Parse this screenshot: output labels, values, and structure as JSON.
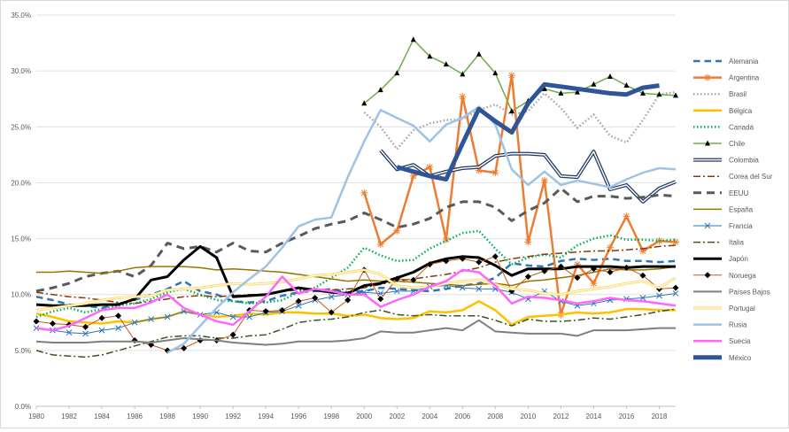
{
  "chart_data": {
    "type": "line",
    "title": "",
    "xlabel": "",
    "ylabel": "",
    "ylim": [
      0,
      35
    ],
    "xlim": [
      1980,
      2019
    ],
    "grid": "horizontal",
    "legend_position": "right",
    "y_ticks": [
      "0.0%",
      "5.0%",
      "10.0%",
      "15.0%",
      "20.0%",
      "25.0%",
      "30.0%",
      "35.0%"
    ],
    "x_ticks": [
      "1980",
      "1982",
      "1984",
      "1986",
      "1988",
      "1990",
      "1992",
      "1994",
      "1996",
      "1998",
      "2000",
      "2002",
      "2004",
      "2006",
      "2008",
      "2010",
      "2012",
      "2014",
      "2016",
      "2018"
    ],
    "series": [
      {
        "name": "Alemania",
        "color": "#2e75b6",
        "style": "dash",
        "width": 2.5,
        "marker": "none",
        "start": 1980,
        "values": [
          9.8,
          9.5,
          9.1,
          9.0,
          8.8,
          9.2,
          9.5,
          10.0,
          10.5,
          11.2,
          10.3,
          10.0,
          9.4,
          9.3,
          9.4,
          9.9,
          10.2,
          10.3,
          10.5,
          10.2,
          10.3,
          10.6,
          10.5,
          10.4,
          10.3,
          10.5,
          10.8,
          11.0,
          11.5,
          12.8,
          12.6,
          12.5,
          13.0,
          13.2,
          13.1,
          13.2,
          13.0,
          13.0,
          12.9,
          13.0
        ]
      },
      {
        "name": "Argentina",
        "color": "#ed7d31",
        "style": "solid",
        "width": 2.5,
        "marker": "star",
        "start": 2000,
        "values": [
          19.1,
          14.5,
          15.7,
          20.6,
          21.4,
          14.9,
          27.7,
          21.1,
          20.9,
          29.6,
          14.7,
          20.2,
          8.2,
          12.7,
          11.0,
          14.2,
          17.0,
          13.9,
          14.8,
          14.7
        ]
      },
      {
        "name": "Brasil",
        "color": "#a5a5a5",
        "style": "dot",
        "width": 2.5,
        "marker": "none",
        "start": 2000,
        "values": [
          26.3,
          25.0,
          23.0,
          24.7,
          25.3,
          25.6,
          25.7,
          26.5,
          27.0,
          26.1,
          26.4,
          28.0,
          26.7,
          24.9,
          26.1,
          24.2,
          23.6,
          25.6,
          27.9,
          28.1
        ]
      },
      {
        "name": "Bélgica",
        "color": "#ffc000",
        "style": "solid",
        "width": 2.5,
        "marker": "none",
        "start": 1980,
        "values": [
          8.3,
          8.0,
          7.6,
          7.5,
          7.4,
          7.6,
          7.5,
          7.8,
          8.0,
          8.5,
          8.2,
          8.0,
          8.1,
          8.3,
          8.2,
          8.4,
          8.4,
          8.3,
          8.3,
          8.1,
          8.2,
          7.9,
          7.8,
          7.9,
          8.5,
          8.4,
          8.6,
          9.4,
          8.6,
          7.3,
          8.0,
          8.1,
          8.2,
          8.4,
          8.3,
          8.4,
          8.7,
          8.7,
          8.6,
          8.6
        ]
      },
      {
        "name": "Canadá",
        "color": "#00b050",
        "style": "dot",
        "width": 2.5,
        "marker": "none",
        "start": 1980,
        "values": [
          8.0,
          8.5,
          8.8,
          8.4,
          8.7,
          9.0,
          9.2,
          9.6,
          10.2,
          10.5,
          10.0,
          9.5,
          9.4,
          9.2,
          9.3,
          9.5,
          10.2,
          10.6,
          11.5,
          12.4,
          14.2,
          13.5,
          13.0,
          13.1,
          14.1,
          14.8,
          15.5,
          15.7,
          14.1,
          12.7,
          13.3,
          13.6,
          13.3,
          14.4,
          15.0,
          15.3,
          14.9,
          14.9,
          14.8,
          14.9
        ]
      },
      {
        "name": "Chile",
        "color": "#70ad47",
        "style": "solid",
        "width": 1.5,
        "marker": "triangle",
        "start": 2000,
        "values": [
          27.1,
          28.3,
          29.8,
          32.8,
          31.3,
          30.6,
          29.7,
          31.5,
          29.8,
          26.4,
          27.3,
          28.4,
          28.0,
          28.1,
          28.8,
          29.5,
          28.7,
          28.0,
          27.9,
          27.8
        ]
      },
      {
        "name": "Colombia",
        "color": "#1f3864",
        "style": "double",
        "width": 4,
        "marker": "none",
        "start": 2001,
        "values": [
          22.9,
          21.2,
          21.6,
          20.6,
          21.0,
          21.3,
          21.4,
          22.4,
          22.6,
          22.6,
          22.5,
          20.6,
          20.5,
          22.8,
          19.4,
          19.8,
          18.3,
          19.5,
          20.1
        ]
      },
      {
        "name": "Corea del Sur",
        "color": "#843c0c",
        "style": "dashdot",
        "width": 1.5,
        "marker": "none",
        "start": 1980,
        "values": [
          10.2,
          10.0,
          9.8,
          9.7,
          9.5,
          9.3,
          9.2,
          9.4,
          9.6,
          9.8,
          9.9,
          9.8,
          9.9,
          10.0,
          10.0,
          10.3,
          10.4,
          10.5,
          10.4,
          10.5,
          10.6,
          10.9,
          11.2,
          11.4,
          11.6,
          11.8,
          12.1,
          12.4,
          12.9,
          13.2,
          13.4,
          13.6,
          13.7,
          13.8,
          13.9,
          13.9,
          14.0,
          14.1,
          14.3,
          14.4
        ]
      },
      {
        "name": "EEUU",
        "color": "#595959",
        "style": "dash",
        "width": 3,
        "marker": "none",
        "start": 1980,
        "values": [
          10.3,
          10.6,
          11.0,
          11.6,
          11.9,
          12.1,
          11.6,
          12.6,
          14.6,
          14.1,
          14.3,
          13.8,
          14.6,
          13.9,
          13.8,
          14.6,
          15.2,
          15.9,
          16.3,
          16.6,
          17.3,
          16.7,
          16.0,
          16.3,
          16.8,
          17.8,
          18.3,
          18.3,
          17.8,
          16.6,
          17.5,
          18.2,
          19.5,
          18.3,
          18.8,
          18.8,
          18.6,
          18.7,
          18.9,
          18.8
        ]
      },
      {
        "name": "España",
        "color": "#997300",
        "style": "solid",
        "width": 1.5,
        "marker": "none",
        "start": 1980,
        "values": [
          12.0,
          12.0,
          12.1,
          12.0,
          11.9,
          12.1,
          12.4,
          12.5,
          12.5,
          12.5,
          12.4,
          12.2,
          12.3,
          12.2,
          12.1,
          12.0,
          11.8,
          11.6,
          11.4,
          11.2,
          11.3,
          11.2,
          11.2,
          11.1,
          11.0,
          10.9,
          10.8,
          10.9,
          11.0,
          10.8,
          11.2,
          11.3,
          11.5,
          11.7,
          12.0,
          12.3,
          12.2,
          12.2,
          12.3,
          12.5
        ]
      },
      {
        "name": "Francia",
        "color": "#2e75b6",
        "style": "solid",
        "width": 1,
        "marker": "x",
        "start": 1980,
        "values": [
          7.0,
          6.8,
          6.6,
          6.5,
          6.8,
          7.0,
          7.5,
          7.8,
          8.0,
          8.5,
          8.2,
          8.4,
          8.0,
          8.0,
          8.4,
          8.5,
          9.0,
          9.5,
          9.8,
          10.0,
          10.2,
          10.1,
          10.3,
          10.3,
          10.7,
          10.8,
          10.6,
          10.5,
          10.5,
          10.2,
          9.6,
          10.3,
          9.4,
          9.0,
          9.2,
          9.5,
          9.6,
          9.7,
          9.9,
          10.1
        ]
      },
      {
        "name": "Italia",
        "color": "#375623",
        "style": "dashdot",
        "width": 1.5,
        "marker": "none",
        "start": 1980,
        "values": [
          5.0,
          4.6,
          4.5,
          4.4,
          4.6,
          5.0,
          5.4,
          5.8,
          6.2,
          6.3,
          6.3,
          6.1,
          6.1,
          6.3,
          6.4,
          6.9,
          7.5,
          7.7,
          7.8,
          8.0,
          8.4,
          8.6,
          8.2,
          8.1,
          8.2,
          8.1,
          8.1,
          8.1,
          7.7,
          7.2,
          7.8,
          7.6,
          7.6,
          7.7,
          7.9,
          7.8,
          8.0,
          8.2,
          8.5,
          8.7
        ]
      },
      {
        "name": "Japón",
        "color": "#000000",
        "style": "solid",
        "width": 3,
        "marker": "none",
        "start": 1980,
        "values": [
          9.1,
          9.0,
          9.0,
          9.0,
          9.1,
          9.1,
          9.6,
          11.3,
          11.6,
          13.1,
          14.3,
          13.3,
          9.8,
          9.9,
          10.0,
          10.3,
          10.6,
          10.4,
          10.2,
          10.1,
          10.8,
          11.0,
          11.5,
          12.0,
          12.8,
          13.2,
          13.4,
          13.3,
          12.6,
          11.7,
          12.3,
          12.3,
          12.3,
          12.5,
          12.5,
          12.5,
          12.4,
          12.5,
          12.5,
          12.5
        ]
      },
      {
        "name": "Noruega",
        "color": "#c55a11",
        "style": "solid",
        "width": 1,
        "marker": "diamond",
        "start": 1980,
        "values": [
          7.6,
          7.4,
          7.3,
          7.1,
          7.9,
          8.1,
          5.9,
          5.5,
          5.0,
          5.2,
          5.9,
          5.9,
          6.4,
          8.6,
          8.5,
          8.6,
          9.4,
          9.7,
          8.4,
          9.5,
          12.2,
          9.6,
          11.4,
          11.3,
          12.7,
          13.0,
          13.2,
          12.9,
          13.4,
          10.3,
          11.6,
          12.1,
          12.5,
          11.5,
          12.3,
          12.0,
          12.4,
          11.7,
          10.5,
          10.6
        ]
      },
      {
        "name": "Países Bajos",
        "color": "#7f7f7f",
        "style": "solid",
        "width": 2,
        "marker": "none",
        "start": 1980,
        "values": [
          5.8,
          5.7,
          5.7,
          5.7,
          5.8,
          5.8,
          5.8,
          5.7,
          5.9,
          6.1,
          6.0,
          5.9,
          5.7,
          5.6,
          5.5,
          5.6,
          5.8,
          5.8,
          5.8,
          5.9,
          6.1,
          6.7,
          6.6,
          6.6,
          6.8,
          7.0,
          6.8,
          7.7,
          6.7,
          6.6,
          6.5,
          6.5,
          6.5,
          6.3,
          6.8,
          6.8,
          6.8,
          6.9,
          7.0,
          7.0
        ]
      },
      {
        "name": "Portugal",
        "color": "#ffd966",
        "style": "double",
        "width": 3,
        "marker": "none",
        "start": 1980,
        "values": [
          8.6,
          8.8,
          9.0,
          9.2,
          9.5,
          9.7,
          9.8,
          9.9,
          10.4,
          10.5,
          10.6,
          10.8,
          11.0,
          10.9,
          11.0,
          11.1,
          11.4,
          11.7,
          11.8,
          12.0,
          12.2,
          11.8,
          10.8,
          10.6,
          10.7,
          11.0,
          11.2,
          11.3,
          10.9,
          10.5,
          10.4,
          10.1,
          10.0,
          10.3,
          10.5,
          10.7,
          11.0,
          11.2,
          10.6,
          11.5
        ]
      },
      {
        "name": "Rusia",
        "color": "#9dc3e6",
        "style": "solid",
        "width": 2.5,
        "marker": "none",
        "start": 1988,
        "values": [
          4.8,
          5.6,
          7.2,
          8.8,
          10.2,
          11.4,
          12.5,
          14.2,
          16.1,
          16.7,
          16.9,
          20.5,
          23.7,
          26.5,
          25.8,
          25.1,
          23.7,
          25.2,
          25.8,
          26.8,
          25.2,
          21.2,
          19.8,
          21.0,
          19.8,
          20.2,
          19.9,
          19.6,
          20.3,
          20.9,
          21.3,
          21.2
        ]
      },
      {
        "name": "Suecia",
        "color": "#ff66ff",
        "style": "solid",
        "width": 2.5,
        "marker": "none",
        "start": 1980,
        "values": [
          7.0,
          6.8,
          7.2,
          7.9,
          8.6,
          8.8,
          8.8,
          9.3,
          10.0,
          8.8,
          8.2,
          7.6,
          7.3,
          8.5,
          9.8,
          11.6,
          10.1,
          10.5,
          10.3,
          10.0,
          10.0,
          8.9,
          9.5,
          10.0,
          10.7,
          11.2,
          12.2,
          12.0,
          10.8,
          9.2,
          9.8,
          9.7,
          9.5,
          9.2,
          9.4,
          9.7,
          9.5,
          9.4,
          9.2,
          9.0
        ]
      },
      {
        "name": "México",
        "color": "#2f5597",
        "style": "solid",
        "width": 5,
        "marker": "none",
        "start": 2002,
        "values": [
          21.4,
          21.0,
          20.6,
          20.3,
          23.5,
          26.6,
          25.5,
          24.5,
          27.1,
          28.8,
          28.6,
          28.4,
          28.2,
          28.0,
          27.9,
          28.5,
          28.7
        ]
      }
    ]
  }
}
